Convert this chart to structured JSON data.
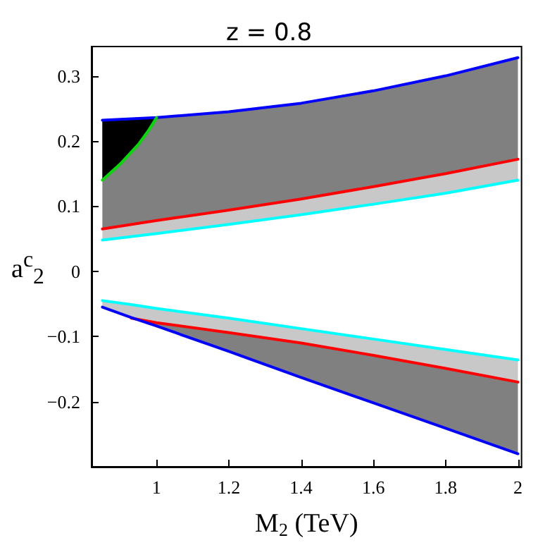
{
  "chart_data": {
    "type": "line",
    "title": "z = 0.8",
    "xlabel": "M$_{2}$ (TeV)",
    "ylabel": "a$^{c}$$_{2}$",
    "xlim": [
      0.82,
      2.01
    ],
    "ylim": [
      -0.3,
      0.345
    ],
    "xticks": [
      1,
      1.2,
      1.4,
      1.6,
      1.8,
      2
    ],
    "yticks": [
      {
        "value": -0.2,
        "label": "−0.2"
      },
      {
        "value": -0.1,
        "label": "−0.1"
      },
      0,
      0.1,
      0.2,
      0.3
    ],
    "grid": false,
    "marker": "none",
    "line_style": "solid",
    "series": [
      {
        "color": "#808080",
        "x": [
          0.85,
          1.0,
          1.2,
          1.4,
          1.6,
          1.8,
          2.0
        ],
        "values": [
          null,
          null,
          null,
          null,
          null,
          null,
          null
        ],
        "lower": [
          0.065,
          0.078,
          0.094,
          0.111,
          0.13,
          0.15,
          0.172
        ],
        "upper": [
          0.232,
          0.236,
          0.245,
          0.258,
          0.277,
          0.3,
          0.328
        ]
      },
      {
        "color": "#c8c8c8",
        "x": [
          0.85,
          1.0,
          1.2,
          1.4,
          1.6,
          1.8,
          2.0
        ],
        "values": [
          null,
          null,
          null,
          null,
          null,
          null,
          null
        ],
        "lower": [
          0.048,
          0.058,
          0.072,
          0.087,
          0.103,
          0.12,
          0.14
        ],
        "upper": [
          0.065,
          0.078,
          0.094,
          0.111,
          0.13,
          0.15,
          0.172
        ]
      },
      {
        "color": "#000000",
        "x": [
          0.85,
          0.9,
          0.95,
          0.98,
          1.0
        ],
        "values": [
          null,
          null,
          null,
          null,
          null
        ],
        "lower": [
          0.14,
          0.165,
          0.195,
          0.218,
          0.236
        ],
        "upper": [
          0.232,
          0.233,
          0.234,
          0.235,
          0.236
        ]
      },
      {
        "color": "#c8c8c8",
        "x": [
          0.85,
          0.93,
          1.0,
          1.2,
          1.4,
          1.6,
          1.8,
          2.0
        ],
        "values": [
          null,
          null,
          null,
          null,
          null,
          null,
          null,
          null
        ],
        "lower": [
          -0.055,
          -0.072,
          -0.079,
          -0.094,
          -0.11,
          -0.129,
          -0.149,
          -0.17
        ],
        "upper": [
          -0.045,
          -0.051,
          -0.057,
          -0.072,
          -0.088,
          -0.104,
          -0.12,
          -0.136
        ]
      },
      {
        "color": "#808080",
        "x": [
          0.93,
          1.0,
          1.2,
          1.4,
          1.6,
          1.8,
          2.0
        ],
        "values": [
          null,
          null,
          null,
          null,
          null,
          null,
          null
        ],
        "lower": [
          -0.071,
          -0.084,
          -0.123,
          -0.163,
          -0.202,
          -0.241,
          -0.28
        ],
        "upper": [
          -0.072,
          -0.079,
          -0.094,
          -0.11,
          -0.129,
          -0.149,
          -0.17
        ]
      },
      {
        "color": "#0000ff",
        "x": [
          0.85,
          1.0,
          1.2,
          1.4,
          1.6,
          1.8,
          2.0
        ],
        "values": [
          0.232,
          0.236,
          0.245,
          0.258,
          0.277,
          0.3,
          0.328
        ]
      },
      {
        "color": "#ff0000",
        "x": [
          0.85,
          1.0,
          1.2,
          1.4,
          1.6,
          1.8,
          2.0
        ],
        "values": [
          0.065,
          0.078,
          0.094,
          0.111,
          0.13,
          0.15,
          0.172
        ]
      },
      {
        "color": "#00ffff",
        "x": [
          0.85,
          1.0,
          1.2,
          1.4,
          1.6,
          1.8,
          2.0
        ],
        "values": [
          0.048,
          0.058,
          0.072,
          0.087,
          0.103,
          0.12,
          0.14
        ]
      },
      {
        "color": "#00dd00",
        "x": [
          0.85,
          0.9,
          0.95,
          0.98,
          1.0
        ],
        "values": [
          0.14,
          0.165,
          0.195,
          0.218,
          0.236
        ]
      },
      {
        "color": "#00ffff",
        "x": [
          0.85,
          0.93,
          1.0,
          1.2,
          1.4,
          1.6,
          1.8,
          2.0
        ],
        "values": [
          -0.045,
          -0.051,
          -0.057,
          -0.072,
          -0.088,
          -0.104,
          -0.12,
          -0.136
        ]
      },
      {
        "color": "#ff0000",
        "x": [
          0.93,
          1.0,
          1.2,
          1.4,
          1.6,
          1.8,
          2.0
        ],
        "values": [
          -0.072,
          -0.079,
          -0.094,
          -0.11,
          -0.129,
          -0.149,
          -0.17
        ]
      },
      {
        "color": "#0000ff",
        "x": [
          0.85,
          0.93,
          1.0,
          1.2,
          1.4,
          1.6,
          1.8,
          2.0
        ],
        "values": [
          -0.055,
          -0.071,
          -0.084,
          -0.123,
          -0.163,
          -0.202,
          -0.241,
          -0.28
        ]
      }
    ]
  }
}
